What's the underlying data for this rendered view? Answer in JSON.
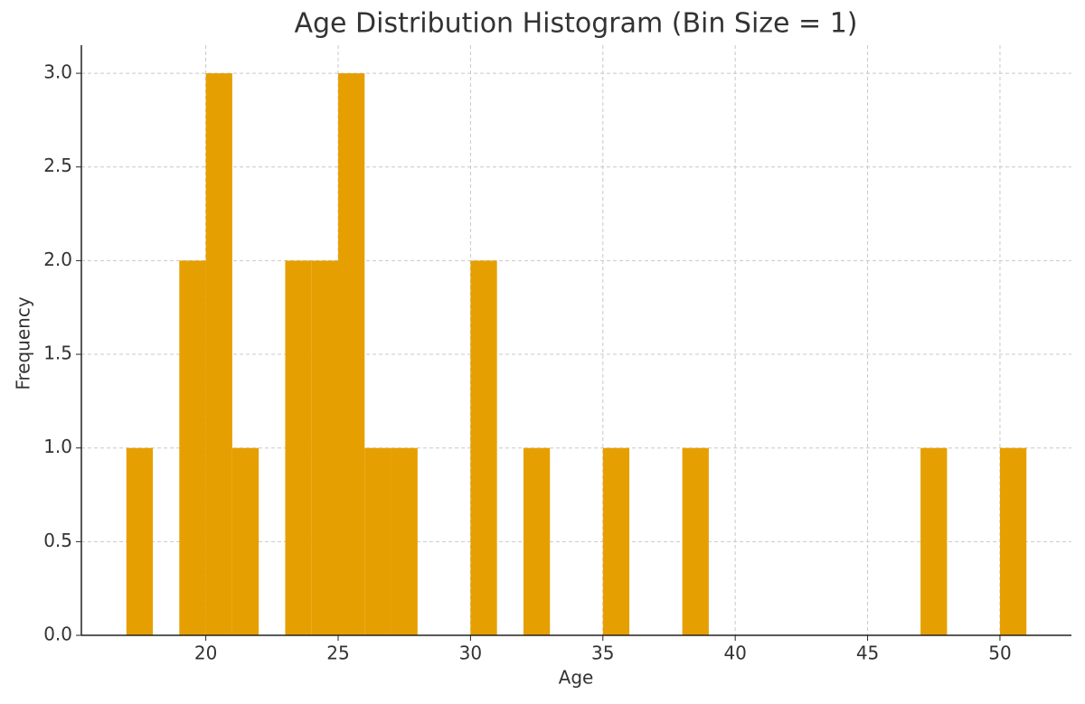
{
  "chart_data": {
    "type": "histogram",
    "title": "Age Distribution Histogram (Bin Size = 1)",
    "x_label": "Age",
    "y_label": "Frequency",
    "bins": [
      17,
      18,
      19,
      20,
      21,
      22,
      23,
      24,
      25,
      26,
      27,
      28,
      29,
      30,
      31,
      32,
      33,
      34,
      35,
      36,
      37,
      38,
      39,
      40,
      41,
      42,
      43,
      44,
      45,
      46,
      47,
      48,
      49,
      50,
      51
    ],
    "values": [
      1,
      0,
      2,
      3,
      1,
      0,
      2,
      2,
      3,
      1,
      1,
      0,
      0,
      2,
      0,
      1,
      0,
      0,
      1,
      0,
      0,
      1,
      0,
      0,
      0,
      0,
      0,
      0,
      0,
      0,
      1,
      0,
      0,
      1
    ],
    "color": "#e69f00",
    "xlim": [
      15.3,
      52.7
    ],
    "xticks": [
      20,
      25,
      30,
      35,
      40,
      45,
      50
    ],
    "ylim": [
      0,
      3.15
    ],
    "yticks": [
      {
        "value": 0,
        "label": "0.0"
      },
      {
        "value": 0.5,
        "label": "0.5"
      },
      {
        "value": 1,
        "label": "1.0"
      },
      {
        "value": 1.5,
        "label": "1.5"
      },
      {
        "value": 2,
        "label": "2.0"
      },
      {
        "value": 2.5,
        "label": "2.5"
      },
      {
        "value": 3,
        "label": "3.0"
      }
    ],
    "grid": true
  }
}
